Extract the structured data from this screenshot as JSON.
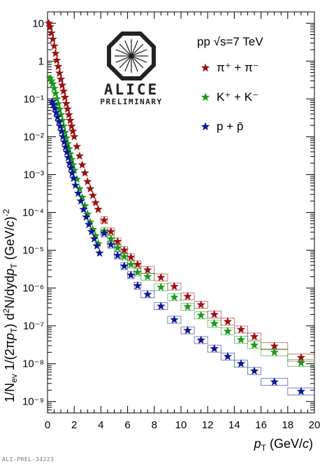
{
  "footer": "ALI-PREL-34223",
  "logo": {
    "name": "ALICE",
    "tag": "PRELIMINARY"
  },
  "legend": {
    "collision": "pp √s=7 TeV",
    "entries": [
      {
        "label": "π⁺ + π⁻",
        "color": "#9b1111"
      },
      {
        "label": "K⁺ + K⁻",
        "color": "#1a9a1a"
      },
      {
        "label": "p + p̄",
        "color": "#0d1790"
      }
    ]
  },
  "chart_data": {
    "type": "scatter",
    "title": "",
    "xlabel": "p_T (GeV/c)",
    "ylabel": "1/N_ev 1/(2πp_T) d²N/dydp_T (GeV/c)⁻²",
    "xlim": [
      0,
      20
    ],
    "ylim": [
      5e-10,
      20
    ],
    "yscale": "log",
    "xticks": [
      "0",
      "2",
      "4",
      "6",
      "8",
      "10",
      "12",
      "14",
      "16",
      "18",
      "20"
    ],
    "yticks": [
      "10⁻⁹",
      "10⁻⁸",
      "10⁻⁷",
      "10⁻⁶",
      "10⁻⁵",
      "10⁻⁴",
      "10⁻³",
      "10⁻²",
      "10⁻¹",
      "1",
      "10"
    ],
    "grid": false,
    "legend_position": "top-right",
    "series": [
      {
        "name": "π⁺ + π⁻",
        "x": [
          0.1,
          0.2,
          0.3,
          0.4,
          0.5,
          0.6,
          0.7,
          0.8,
          0.9,
          1.0,
          1.1,
          1.2,
          1.3,
          1.4,
          1.5,
          1.6,
          1.7,
          1.8,
          1.9,
          2.0,
          2.2,
          2.4,
          2.6,
          2.8,
          3.0,
          3.2,
          3.4,
          3.6,
          3.8,
          4.25,
          4.75,
          5.25,
          5.75,
          6.25,
          6.75,
          7.5,
          8.5,
          9.5,
          10.5,
          11.5,
          12.5,
          13.5,
          14.5,
          15.5,
          17.0,
          19.0
        ],
        "y": [
          10,
          8,
          5.5,
          3.8,
          2.5,
          1.6,
          1.05,
          0.72,
          0.48,
          0.33,
          0.23,
          0.16,
          0.11,
          0.075,
          0.054,
          0.038,
          0.027,
          0.019,
          0.014,
          0.01,
          0.0055,
          0.0031,
          0.0018,
          0.0011,
          0.00065,
          0.00042,
          0.00028,
          0.00018,
          0.00012,
          6.2e-05,
          3.1e-05,
          1.7e-05,
          1e-05,
          6.5e-06,
          4.2e-06,
          3e-06,
          1.9e-06,
          1.1e-06,
          6e-07,
          3.6e-07,
          2e-07,
          1.3e-07,
          8e-08,
          5.2e-08,
          2.9e-08,
          1.45e-08
        ]
      },
      {
        "name": "K⁺ + K⁻",
        "x": [
          0.2,
          0.3,
          0.4,
          0.5,
          0.6,
          0.7,
          0.8,
          0.9,
          1.0,
          1.1,
          1.2,
          1.3,
          1.4,
          1.5,
          1.6,
          1.7,
          1.8,
          1.9,
          2.0,
          2.2,
          2.4,
          2.6,
          2.8,
          3.0,
          3.2,
          3.4,
          3.6,
          3.8,
          4.25,
          4.75,
          5.25,
          5.75,
          6.25,
          6.75,
          7.5,
          8.5,
          9.5,
          10.5,
          11.5,
          12.5,
          13.5,
          14.5,
          15.5,
          17.0,
          19.0
        ],
        "y": [
          0.35,
          0.3,
          0.25,
          0.19,
          0.14,
          0.1,
          0.074,
          0.053,
          0.038,
          0.027,
          0.019,
          0.013,
          0.0093,
          0.0066,
          0.0048,
          0.0035,
          0.0025,
          0.0018,
          0.0013,
          0.00075,
          0.00042,
          0.00025,
          0.00015,
          9e-05,
          5.5e-05,
          3.5e-05,
          2.4e-05,
          1.5e-05,
          3.2e-05,
          2e-05,
          1.15e-05,
          6.8e-06,
          4.2e-06,
          2.6e-06,
          2e-06,
          1.05e-06,
          5.7e-07,
          3.2e-07,
          1.9e-07,
          1.15e-07,
          7.2e-08,
          4.3e-08,
          3.1e-08,
          2e-08,
          1.05e-08
        ]
      },
      {
        "name": "p + p̄",
        "x": [
          0.35,
          0.45,
          0.55,
          0.65,
          0.75,
          0.85,
          0.95,
          1.05,
          1.15,
          1.25,
          1.35,
          1.45,
          1.55,
          1.65,
          1.75,
          1.85,
          1.95,
          2.1,
          2.3,
          2.5,
          2.7,
          2.9,
          3.1,
          3.3,
          3.5,
          3.7,
          3.9,
          4.25,
          4.75,
          5.25,
          5.75,
          6.25,
          6.75,
          7.5,
          8.5,
          9.5,
          10.5,
          11.5,
          12.5,
          13.5,
          14.5,
          15.5,
          17.0,
          19.0
        ],
        "y": [
          0.085,
          0.07,
          0.056,
          0.043,
          0.033,
          0.025,
          0.019,
          0.014,
          0.01,
          0.0073,
          0.0053,
          0.0039,
          0.0028,
          0.002,
          0.0015,
          0.0011,
          0.0008,
          0.00052,
          0.00032,
          0.0002,
          0.00012,
          7.5e-05,
          4.8e-05,
          3.1e-05,
          2e-05,
          1.3e-05,
          8.4e-06,
          2.8e-05,
          1.4e-05,
          7.3e-06,
          3.8e-06,
          2.2e-06,
          1.15e-06,
          6.8e-07,
          3.3e-07,
          1.45e-07,
          7.6e-08,
          4.2e-08,
          2.5e-08,
          1.55e-08,
          1e-08,
          6.4e-09,
          3.3e-09,
          1.85e-09
        ]
      }
    ]
  }
}
